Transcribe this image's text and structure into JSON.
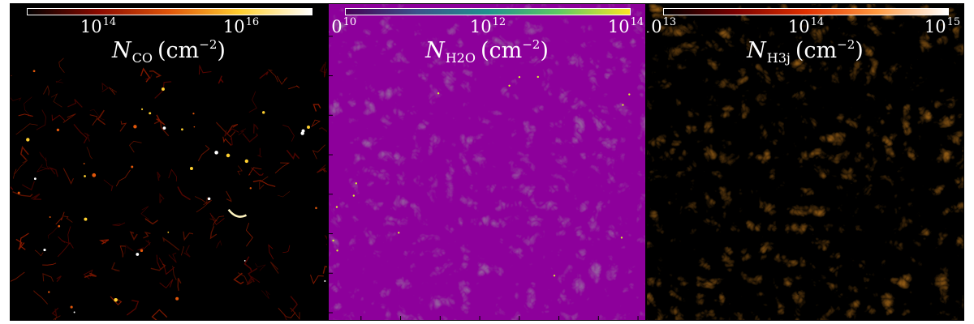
{
  "panels": [
    {
      "colormap": "afmhot",
      "colors": [
        "#000000",
        "#8b0a00",
        "#e0560a",
        "#ffd030",
        "#ffffff"
      ],
      "tick_labels": [
        {
          "base": "10",
          "exp": "14",
          "frac": 0.25
        },
        {
          "base": "10",
          "exp": "16",
          "frac": 0.75
        }
      ],
      "label": {
        "symbol": "N",
        "sub": "CO",
        "unit": "(cm",
        "unit_exp": "−2",
        "unit_close": ")"
      }
    },
    {
      "colormap": "viridis",
      "colors": [
        "#440154",
        "#3b528b",
        "#21908d",
        "#5dc962",
        "#fde725"
      ],
      "tick_labels": [
        {
          "base": "10",
          "exp": "10",
          "frac": 0.0
        },
        {
          "base": "10",
          "exp": "12",
          "frac": 0.5
        },
        {
          "base": "10",
          "exp": "14",
          "frac": 1.0
        }
      ],
      "label": {
        "symbol": "N",
        "sub": "H2O",
        "unit": "(cm",
        "unit_exp": "−2",
        "unit_close": ")"
      }
    },
    {
      "colormap": "gist_heat",
      "colors": [
        "#000000",
        "#7a0000",
        "#e03000",
        "#ff9a40",
        "#ffffff"
      ],
      "tick_labels": [
        {
          "base": "10",
          "exp": "13",
          "frac": 0.0
        },
        {
          "base": "10",
          "exp": "14",
          "frac": 0.5
        },
        {
          "base": "10",
          "exp": "15",
          "frac": 1.0
        }
      ],
      "label": {
        "symbol": "N",
        "sub": "H3j",
        "unit": "(cm",
        "unit_exp": "−2",
        "unit_close": ")"
      }
    }
  ]
}
